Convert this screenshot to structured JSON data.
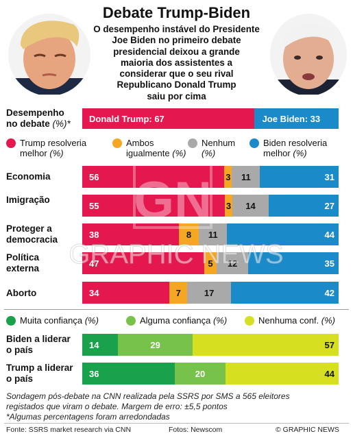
{
  "header": {
    "title": "Debate Trump-Biden",
    "subtitle_lines": [
      "O desempenho instável do Presidente",
      "Joe Biden no primeiro debate",
      "presidencial deixou a grande",
      "maioria dos assistentes a",
      "considerar que o seu rival",
      "Republicano Donald Trump",
      "saiu por cima"
    ]
  },
  "colors": {
    "trump": "#e4184f",
    "both": "#f5a623",
    "neither": "#a9a9a9",
    "biden": "#1b8ac8",
    "much": "#1aa14b",
    "some": "#77c24a",
    "none": "#d6e021"
  },
  "performance": {
    "label_lines": [
      "Desempenho",
      "no debate"
    ],
    "unit": "(%)*",
    "trump_label": "Donald Trump: 67",
    "biden_label": "Joe Biden: 33"
  },
  "legend_issues": [
    {
      "key": "trump",
      "lines": [
        "Trump resolveria",
        "melhor"
      ],
      "unit": "(%)"
    },
    {
      "key": "both",
      "lines": [
        "Ambos",
        "igualmente"
      ],
      "unit": "(%)"
    },
    {
      "key": "neither",
      "lines": [
        "Nenhum"
      ],
      "unit": "(%)"
    },
    {
      "key": "biden",
      "lines": [
        "Biden resolveria",
        "melhor"
      ],
      "unit": "(%)"
    }
  ],
  "legend_confidence": [
    {
      "key": "much",
      "label": "Muita confiança",
      "unit": "(%)"
    },
    {
      "key": "some",
      "label": "Alguma confiança",
      "unit": "(%)"
    },
    {
      "key": "none",
      "label": "Nenhuma conf.",
      "unit": "(%)"
    }
  ],
  "chart_data": [
    {
      "type": "bar",
      "orientation": "horizontal-stacked",
      "categories": [
        "Desempenho no debate"
      ],
      "series": [
        {
          "name": "Donald Trump",
          "values": [
            67
          ]
        },
        {
          "name": "Joe Biden",
          "values": [
            33
          ]
        }
      ]
    },
    {
      "type": "bar",
      "orientation": "horizontal-stacked",
      "categories": [
        "Economia",
        "Imigração",
        "Proteger a democracia",
        "Política externa",
        "Aborto"
      ],
      "category_lines": [
        [
          "Economia"
        ],
        [
          "Imigração"
        ],
        [
          "Proteger a",
          "democracia"
        ],
        [
          "Política",
          "externa"
        ],
        [
          "Aborto"
        ]
      ],
      "series": [
        {
          "name": "Trump resolveria melhor",
          "values": [
            56,
            55,
            38,
            47,
            34
          ]
        },
        {
          "name": "Ambos igualmente",
          "values": [
            3,
            3,
            8,
            5,
            7
          ]
        },
        {
          "name": "Nenhum",
          "values": [
            11,
            14,
            11,
            12,
            17
          ]
        },
        {
          "name": "Biden resolveria melhor",
          "values": [
            31,
            27,
            44,
            35,
            42
          ]
        }
      ]
    },
    {
      "type": "bar",
      "orientation": "horizontal-stacked",
      "categories": [
        "Biden a liderar o país",
        "Trump a liderar o país"
      ],
      "category_lines": [
        [
          "Biden a liderar",
          "o país"
        ],
        [
          "Trump a liderar",
          "o país"
        ]
      ],
      "series": [
        {
          "name": "Muita confiança",
          "values": [
            14,
            36
          ]
        },
        {
          "name": "Alguma confiança",
          "values": [
            29,
            20
          ]
        },
        {
          "name": "Nenhuma conf.",
          "values": [
            57,
            44
          ]
        }
      ]
    }
  ],
  "notes": {
    "survey_lines": [
      "Sondagem pós-debate na CNN realizada pela SSRS por SMS a 565 eleitores",
      "registados que viram o debate. Margem de erro: ±5,5 pontos"
    ],
    "footnote": "*Algumas percentagens foram arredondadas"
  },
  "credits": {
    "source": "Fonte: SSRS market research via CNN",
    "photos": "Fotos: Newscom",
    "copyright": "© GRAPHIC NEWS"
  },
  "watermark": {
    "logo": "GN",
    "text": "GRAPHIC NEWS"
  }
}
